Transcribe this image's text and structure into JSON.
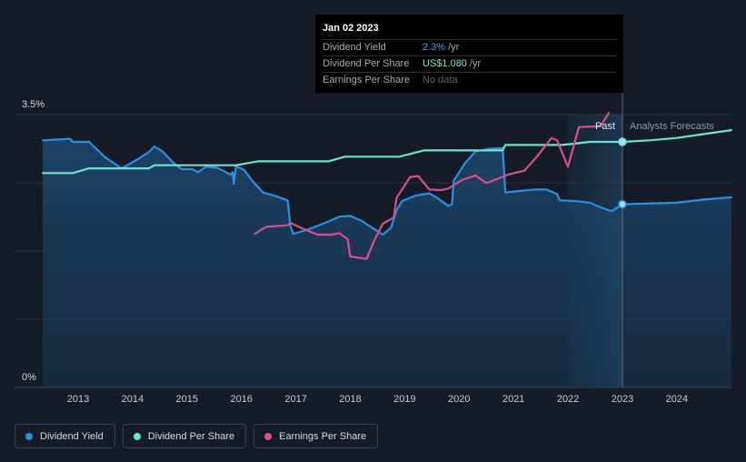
{
  "tooltip": {
    "date": "Jan 02 2023",
    "rows": [
      {
        "label": "Dividend Yield",
        "value": "2.3%",
        "unit": "/yr"
      },
      {
        "label": "Dividend Per Share",
        "value": "US$1.080",
        "unit": "/yr"
      },
      {
        "label": "Earnings Per Share",
        "value": "No data"
      }
    ]
  },
  "legend": [
    {
      "label": "Dividend Yield",
      "color": "#2d8fe4"
    },
    {
      "label": "Dividend Per Share",
      "color": "#6fe3cf"
    },
    {
      "label": "Earnings Per Share",
      "color": "#d4518e"
    }
  ],
  "colors": {
    "background": "#151b27",
    "yield": "#2d8fe4",
    "dps": "#6fe3cf",
    "eps": "#d4518e",
    "grid": "#2a303c"
  },
  "chart_data": {
    "type": "line",
    "title": "",
    "xlabel": "",
    "ylabel": "",
    "ylim": [
      0,
      3.5
    ],
    "y_tick_labels": [
      "3.5%",
      "0%"
    ],
    "x_ticks": [
      2013,
      2014,
      2015,
      2016,
      2017,
      2018,
      2019,
      2020,
      2021,
      2022,
      2023,
      2024
    ],
    "xlim": [
      2012.35,
      2025.0
    ],
    "labels": {
      "past": "Past",
      "forecast": "Analysts Forecasts"
    },
    "divider_x": 2023.0,
    "forecast_shade_from": 2022.0,
    "series": [
      {
        "name": "Dividend Yield",
        "unit": "%",
        "points": [
          [
            2012.35,
            3.17
          ],
          [
            2012.85,
            3.19
          ],
          [
            2012.9,
            3.15
          ],
          [
            2013.2,
            3.15
          ],
          [
            2013.5,
            2.95
          ],
          [
            2013.8,
            2.81
          ],
          [
            2014.1,
            2.93
          ],
          [
            2014.3,
            3.02
          ],
          [
            2014.4,
            3.09
          ],
          [
            2014.55,
            3.03
          ],
          [
            2014.75,
            2.88
          ],
          [
            2014.9,
            2.8
          ],
          [
            2015.1,
            2.8
          ],
          [
            2015.2,
            2.76
          ],
          [
            2015.35,
            2.83
          ],
          [
            2015.55,
            2.82
          ],
          [
            2015.8,
            2.73
          ],
          [
            2015.84,
            2.76
          ],
          [
            2015.86,
            2.61
          ],
          [
            2015.9,
            2.84
          ],
          [
            2016.05,
            2.79
          ],
          [
            2016.2,
            2.65
          ],
          [
            2016.4,
            2.5
          ],
          [
            2016.6,
            2.46
          ],
          [
            2016.85,
            2.4
          ],
          [
            2016.9,
            2.07
          ],
          [
            2016.95,
            1.97
          ],
          [
            2017.2,
            2.02
          ],
          [
            2017.5,
            2.1
          ],
          [
            2017.8,
            2.19
          ],
          [
            2018.0,
            2.2
          ],
          [
            2018.2,
            2.14
          ],
          [
            2018.4,
            2.05
          ],
          [
            2018.6,
            1.96
          ],
          [
            2018.75,
            2.05
          ],
          [
            2018.85,
            2.27
          ],
          [
            2018.95,
            2.39
          ],
          [
            2019.2,
            2.46
          ],
          [
            2019.45,
            2.49
          ],
          [
            2019.6,
            2.43
          ],
          [
            2019.8,
            2.33
          ],
          [
            2019.87,
            2.35
          ],
          [
            2019.9,
            2.65
          ],
          [
            2020.1,
            2.87
          ],
          [
            2020.3,
            3.03
          ],
          [
            2020.55,
            3.06
          ],
          [
            2020.8,
            3.07
          ],
          [
            2020.85,
            2.5
          ],
          [
            2021.1,
            2.52
          ],
          [
            2021.4,
            2.54
          ],
          [
            2021.6,
            2.54
          ],
          [
            2021.8,
            2.48
          ],
          [
            2021.85,
            2.4
          ],
          [
            2022.15,
            2.39
          ],
          [
            2022.4,
            2.37
          ],
          [
            2022.6,
            2.31
          ],
          [
            2022.8,
            2.26
          ],
          [
            2023.0,
            2.35
          ],
          [
            2023.5,
            2.36
          ],
          [
            2024.0,
            2.37
          ],
          [
            2024.5,
            2.41
          ],
          [
            2025.0,
            2.44
          ]
        ]
      },
      {
        "name": "Dividend Per Share",
        "unit": "US$",
        "points": [
          [
            2012.35,
            2.75
          ],
          [
            2012.9,
            2.75
          ],
          [
            2013.2,
            2.81
          ],
          [
            2013.8,
            2.81
          ],
          [
            2014.3,
            2.81
          ],
          [
            2014.4,
            2.85
          ],
          [
            2015.9,
            2.85
          ],
          [
            2016.3,
            2.9
          ],
          [
            2017.1,
            2.9
          ],
          [
            2017.6,
            2.9
          ],
          [
            2017.9,
            2.96
          ],
          [
            2018.3,
            2.96
          ],
          [
            2018.9,
            2.96
          ],
          [
            2019.35,
            3.04
          ],
          [
            2020.8,
            3.04
          ],
          [
            2020.85,
            3.11
          ],
          [
            2021.4,
            3.11
          ],
          [
            2021.9,
            3.11
          ],
          [
            2022.4,
            3.15
          ],
          [
            2023.0,
            3.15
          ],
          [
            2023.5,
            3.17
          ],
          [
            2024.0,
            3.2
          ],
          [
            2024.5,
            3.25
          ],
          [
            2025.0,
            3.3
          ]
        ]
      },
      {
        "name": "Earnings Per Share",
        "unit": "US$",
        "points": [
          [
            2016.25,
            1.97
          ],
          [
            2016.45,
            2.06
          ],
          [
            2016.85,
            2.08
          ],
          [
            2016.9,
            2.11
          ],
          [
            2017.15,
            2.03
          ],
          [
            2017.4,
            1.96
          ],
          [
            2017.65,
            1.96
          ],
          [
            2017.8,
            1.98
          ],
          [
            2017.95,
            1.9
          ],
          [
            2018.0,
            1.68
          ],
          [
            2018.3,
            1.65
          ],
          [
            2018.45,
            1.9
          ],
          [
            2018.6,
            2.1
          ],
          [
            2018.8,
            2.18
          ],
          [
            2018.85,
            2.43
          ],
          [
            2019.1,
            2.7
          ],
          [
            2019.25,
            2.71
          ],
          [
            2019.45,
            2.54
          ],
          [
            2019.65,
            2.53
          ],
          [
            2019.8,
            2.55
          ],
          [
            2020.05,
            2.66
          ],
          [
            2020.3,
            2.72
          ],
          [
            2020.5,
            2.62
          ],
          [
            2020.65,
            2.66
          ],
          [
            2020.9,
            2.73
          ],
          [
            2021.2,
            2.78
          ],
          [
            2021.45,
            2.98
          ],
          [
            2021.7,
            3.2
          ],
          [
            2021.8,
            3.17
          ],
          [
            2022.0,
            2.83
          ],
          [
            2022.2,
            3.34
          ],
          [
            2022.6,
            3.35
          ],
          [
            2022.75,
            3.52
          ]
        ]
      }
    ],
    "markers": [
      {
        "series": "Dividend Per Share",
        "x": 2023.0,
        "y": 3.15
      },
      {
        "series": "Dividend Yield",
        "x": 2023.0,
        "y": 2.35
      }
    ]
  }
}
